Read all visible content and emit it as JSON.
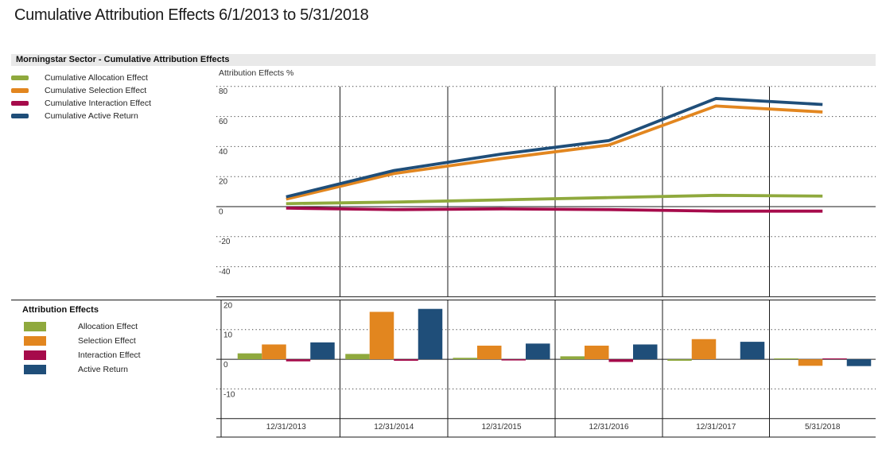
{
  "page": {
    "title": "Cumulative Attribution Effects 6/1/2013 to 5/31/2018"
  },
  "chart_data": [
    {
      "id": "cumulative-attribution-effects",
      "type": "line",
      "title": "Morningstar Sector - Cumulative Attribution Effects",
      "ylabel": "Attribution Effects %",
      "x_categories": [
        "12/31/2013",
        "12/31/2014",
        "12/31/2015",
        "12/31/2016",
        "12/31/2017",
        "5/31/2018"
      ],
      "y_ticks": [
        80,
        60,
        40,
        20,
        0,
        -20,
        -40
      ],
      "ylim": [
        -60,
        88
      ],
      "grid": "horizontal-dotted, vertical period separators, solid zero line",
      "legend_position": "left",
      "series": [
        {
          "name": "Cumulative Allocation Effect",
          "color": "#8FA93D",
          "values": [
            2,
            3,
            4.5,
            6,
            7.5,
            7
          ]
        },
        {
          "name": "Cumulative Selection Effect",
          "color": "#E2861F",
          "values": [
            5,
            22,
            32,
            41,
            67,
            63
          ]
        },
        {
          "name": "Cumulative Interaction Effect",
          "color": "#A60B4B",
          "values": [
            -1,
            -2,
            -1.5,
            -2,
            -3,
            -3
          ]
        },
        {
          "name": "Cumulative Active Return",
          "color": "#1F4E79",
          "values": [
            6.5,
            24,
            35,
            44,
            72,
            68
          ]
        }
      ]
    },
    {
      "id": "attribution-effects",
      "type": "bar",
      "title": "Attribution Effects",
      "x_categories": [
        "12/31/2013",
        "12/31/2014",
        "12/31/2015",
        "12/31/2016",
        "12/31/2017",
        "5/31/2018"
      ],
      "y_ticks": [
        20,
        10,
        0,
        -10
      ],
      "ylim": [
        -20,
        20
      ],
      "grid": "horizontal-dotted, vertical period separators, solid zero line",
      "legend_position": "left",
      "series": [
        {
          "name": "Allocation Effect",
          "color": "#8FA93D",
          "values": [
            2,
            1.8,
            0.5,
            1,
            -0.5,
            0.3
          ]
        },
        {
          "name": "Selection Effect",
          "color": "#E2861F",
          "values": [
            5,
            16,
            4.6,
            4.6,
            6.8,
            -2.2
          ]
        },
        {
          "name": "Interaction Effect",
          "color": "#A60B4B",
          "values": [
            -0.7,
            -0.5,
            -0.4,
            -0.9,
            0,
            0.3
          ]
        },
        {
          "name": "Active Return",
          "color": "#1F4E79",
          "values": [
            5.7,
            17,
            5.3,
            5,
            5.9,
            -2.3
          ]
        }
      ]
    }
  ]
}
